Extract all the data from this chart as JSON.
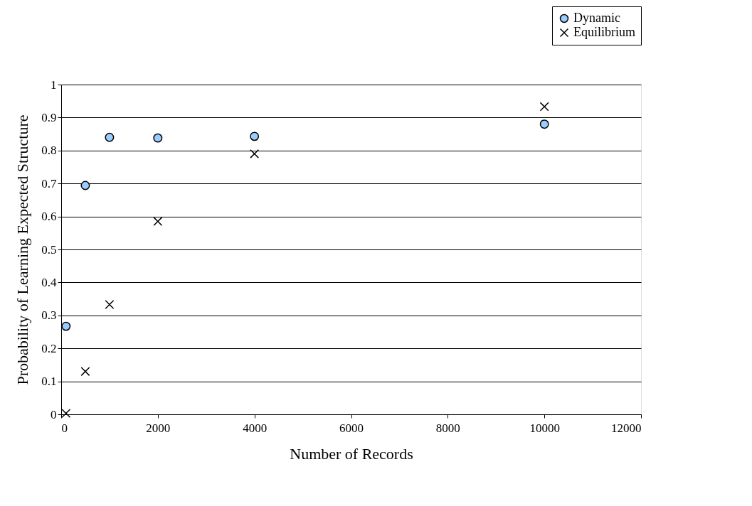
{
  "chart_data": {
    "type": "scatter",
    "xlabel": "Number of Records",
    "ylabel": "Probability of Learning Expected Structure",
    "xlim": [
      0,
      12000
    ],
    "xticks": [
      0,
      2000,
      4000,
      6000,
      8000,
      10000,
      12000
    ],
    "ylim": [
      0,
      1
    ],
    "yticks": [
      0,
      0.1,
      0.2,
      0.3,
      0.4,
      0.5,
      0.6,
      0.7,
      0.8,
      0.9,
      1
    ],
    "grid": "y",
    "legend": "top right",
    "x": [
      100,
      500,
      1000,
      2000,
      4000,
      10000
    ],
    "series": [
      {
        "name": "Dynamic",
        "color": "#99ccff",
        "marker": "circle",
        "values": [
          0.267,
          0.694,
          0.84,
          0.838,
          0.843,
          0.88
        ]
      },
      {
        "name": "Equilibrium",
        "color": "#000000",
        "marker": "cross",
        "values": [
          0.003,
          0.13,
          0.333,
          0.585,
          0.79,
          0.933
        ]
      }
    ]
  }
}
